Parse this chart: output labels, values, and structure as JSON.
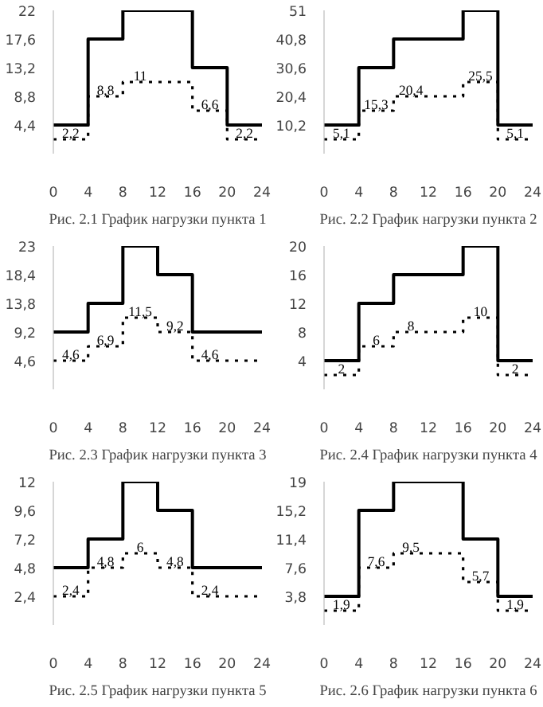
{
  "chart_data": [
    {
      "type": "step",
      "title": "Рис. 2.1 График нагрузки пункта 1",
      "xlim": [
        0,
        24
      ],
      "xticks": [
        0,
        4,
        8,
        12,
        16,
        20,
        24
      ],
      "ylim": [
        0,
        22
      ],
      "yticks": [
        {
          "value": 4.4,
          "label": "4,4"
        },
        {
          "value": 8.8,
          "label": "8,8"
        },
        {
          "value": 13.2,
          "label": "13,2"
        },
        {
          "value": 17.6,
          "label": "17,6"
        },
        22
      ],
      "series": [
        {
          "color": "#000000",
          "line_style": "solid",
          "x": [
            0,
            4,
            8,
            16,
            20,
            24
          ],
          "values": [
            4.4,
            17.6,
            22,
            13.2,
            4.4,
            4.4
          ]
        },
        {
          "color": "#000000",
          "line_style": "dotted",
          "x": [
            0,
            4,
            8,
            16,
            20,
            24
          ],
          "values": [
            2.2,
            8.8,
            11,
            6.6,
            2.2,
            2.2
          ],
          "value_labels": [
            "2,2",
            "8,8",
            "11",
            "6,6",
            "2,2",
            null
          ]
        }
      ]
    },
    {
      "type": "step",
      "title": "Рис. 2.2 График нагрузки пункта 2",
      "xlim": [
        0,
        24
      ],
      "xticks": [
        0,
        4,
        8,
        12,
        16,
        20,
        24
      ],
      "ylim": [
        0,
        51
      ],
      "yticks": [
        {
          "value": 10.2,
          "label": "10,2"
        },
        {
          "value": 20.4,
          "label": "20,4"
        },
        {
          "value": 30.6,
          "label": "30,6"
        },
        {
          "value": 40.8,
          "label": "40,8"
        },
        51
      ],
      "series": [
        {
          "color": "#000000",
          "line_style": "solid",
          "x": [
            0,
            4,
            8,
            16,
            20,
            24
          ],
          "values": [
            10.2,
            30.6,
            40.8,
            51,
            10.2,
            10.2
          ]
        },
        {
          "color": "#000000",
          "line_style": "dotted",
          "x": [
            0,
            4,
            8,
            16,
            20,
            24
          ],
          "values": [
            5.1,
            15.3,
            20.4,
            25.5,
            5.1,
            5.1
          ],
          "value_labels": [
            "5,1",
            "15,3",
            "20,4",
            "25,5",
            "5,1",
            null
          ]
        }
      ]
    },
    {
      "type": "step",
      "title": "Рис. 2.3 График нагрузки пункта 3",
      "xlim": [
        0,
        24
      ],
      "xticks": [
        0,
        4,
        8,
        12,
        16,
        20,
        24
      ],
      "ylim": [
        0,
        23
      ],
      "yticks": [
        {
          "value": 4.6,
          "label": "4,6"
        },
        {
          "value": 9.2,
          "label": "9,2"
        },
        {
          "value": 13.8,
          "label": "13,8"
        },
        {
          "value": 18.4,
          "label": "18,4"
        },
        23
      ],
      "series": [
        {
          "color": "#000000",
          "line_style": "solid",
          "x": [
            0,
            4,
            8,
            12,
            16,
            24
          ],
          "values": [
            9.2,
            13.8,
            23,
            18.4,
            9.2,
            9.2
          ]
        },
        {
          "color": "#000000",
          "line_style": "dotted",
          "x": [
            0,
            4,
            8,
            12,
            16,
            24
          ],
          "values": [
            4.6,
            6.9,
            11.5,
            9.2,
            4.6,
            4.6
          ],
          "value_labels": [
            "4,6",
            "6,9",
            "11,5",
            "9,2",
            "4,6",
            null
          ]
        }
      ]
    },
    {
      "type": "step",
      "title": "Рис. 2.4 График нагрузки пункта 4",
      "xlim": [
        0,
        24
      ],
      "xticks": [
        0,
        4,
        8,
        12,
        16,
        20,
        24
      ],
      "ylim": [
        0,
        20
      ],
      "yticks": [
        4,
        8,
        12,
        16,
        20
      ],
      "series": [
        {
          "color": "#000000",
          "line_style": "solid",
          "x": [
            0,
            4,
            8,
            16,
            20,
            24
          ],
          "values": [
            4,
            12,
            16,
            20,
            4,
            4
          ]
        },
        {
          "color": "#000000",
          "line_style": "dotted",
          "x": [
            0,
            4,
            8,
            16,
            20,
            24
          ],
          "values": [
            2,
            6,
            8,
            10,
            2,
            2
          ],
          "value_labels": [
            "2",
            "6",
            "8",
            "10",
            "2",
            null
          ]
        }
      ]
    },
    {
      "type": "step",
      "title": "Рис. 2.5 График нагрузки пункта 5",
      "xlim": [
        0,
        24
      ],
      "xticks": [
        0,
        4,
        8,
        12,
        16,
        20,
        24
      ],
      "ylim": [
        0,
        12
      ],
      "yticks": [
        {
          "value": 2.4,
          "label": "2,4"
        },
        {
          "value": 4.8,
          "label": "4,8"
        },
        {
          "value": 7.2,
          "label": "7,2"
        },
        {
          "value": 9.6,
          "label": "9,6"
        },
        12
      ],
      "series": [
        {
          "color": "#000000",
          "line_style": "solid",
          "x": [
            0,
            4,
            8,
            12,
            16,
            24
          ],
          "values": [
            4.8,
            7.2,
            12,
            9.6,
            4.8,
            4.8
          ]
        },
        {
          "color": "#000000",
          "line_style": "dotted",
          "x": [
            0,
            4,
            8,
            12,
            16,
            24
          ],
          "values": [
            2.4,
            4.8,
            6,
            4.8,
            2.4,
            2.4
          ],
          "value_labels": [
            "2,4",
            "4,8",
            "6",
            "4,8",
            "2,4",
            null
          ]
        }
      ]
    },
    {
      "type": "step",
      "title": "Рис. 2.6 График нагрузки пункта 6",
      "xlim": [
        0,
        24
      ],
      "xticks": [
        0,
        4,
        8,
        12,
        16,
        20,
        24
      ],
      "ylim": [
        0,
        19
      ],
      "yticks": [
        {
          "value": 3.8,
          "label": "3,8"
        },
        {
          "value": 7.6,
          "label": "7,6"
        },
        {
          "value": 11.4,
          "label": "11,4"
        },
        {
          "value": 15.2,
          "label": "15,2"
        },
        19
      ],
      "series": [
        {
          "color": "#000000",
          "line_style": "solid",
          "x": [
            0,
            4,
            8,
            16,
            20,
            24
          ],
          "values": [
            3.8,
            15.2,
            19,
            11.4,
            3.8,
            3.8
          ]
        },
        {
          "color": "#000000",
          "line_style": "dotted",
          "x": [
            0,
            4,
            8,
            16,
            20,
            24
          ],
          "values": [
            1.9,
            7.6,
            9.5,
            5.7,
            1.9,
            1.9
          ],
          "value_labels": [
            "1,9",
            "7,6",
            "9,5",
            "5,7",
            "1,9",
            null
          ]
        }
      ]
    }
  ]
}
